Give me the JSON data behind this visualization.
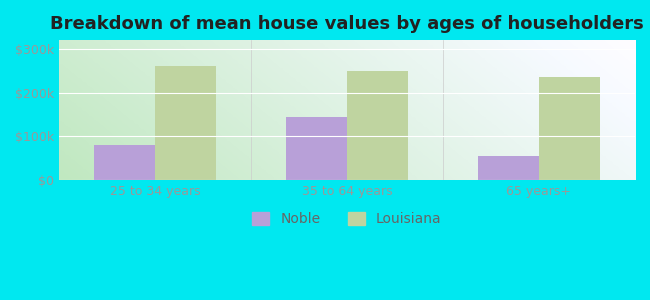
{
  "title": "Breakdown of mean house values by ages of householders",
  "categories": [
    "25 to 34 years",
    "35 to 64 years",
    "65 years+"
  ],
  "noble_values": [
    80000,
    145000,
    55000
  ],
  "louisiana_values": [
    260000,
    250000,
    235000
  ],
  "noble_color": "#b8a0d8",
  "louisiana_color": "#bfd4a0",
  "background_outer": "#00e8f0",
  "ylim": [
    0,
    320000
  ],
  "yticks": [
    0,
    100000,
    200000,
    300000
  ],
  "ytick_labels": [
    "$0",
    "$100k",
    "$200k",
    "$300k"
  ],
  "legend_noble": "Noble",
  "legend_louisiana": "Louisiana",
  "bar_width": 0.32,
  "title_fontsize": 13,
  "tick_fontsize": 9,
  "legend_fontsize": 10,
  "tick_color": "#999999",
  "grad_color_left": "#c0e8c0",
  "grad_color_right": "#e8f4e8",
  "grad_color_top": "#f0f8f8"
}
